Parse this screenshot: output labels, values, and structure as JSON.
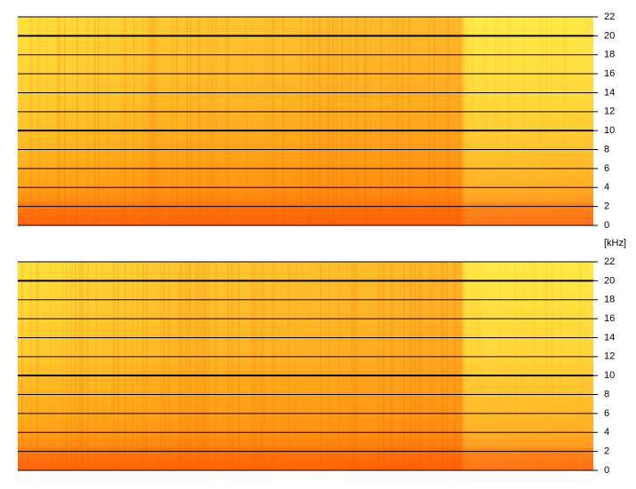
{
  "chart_data": [
    {
      "type": "spectrogram",
      "ylim": [
        0,
        22
      ],
      "yticks": [
        0,
        2,
        4,
        6,
        8,
        10,
        12,
        14,
        16,
        18,
        20,
        22
      ],
      "major_yticks": [
        10,
        20
      ],
      "ylabel": "[kHz]"
    },
    {
      "type": "spectrogram",
      "ylim": [
        0,
        22
      ],
      "yticks": [
        0,
        2,
        4,
        6,
        8,
        10,
        12,
        14,
        16,
        18,
        20,
        22
      ],
      "major_yticks": [
        10,
        20
      ]
    }
  ]
}
